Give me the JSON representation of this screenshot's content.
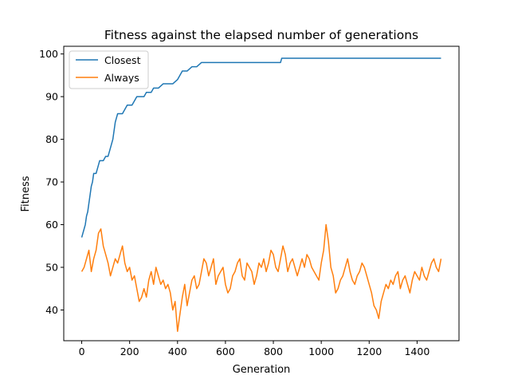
{
  "chart_data": {
    "type": "line",
    "title": "Fitness against the elapsed number of generations",
    "xlabel": "Generation",
    "ylabel": "Fitness",
    "xlim": [
      -75,
      1575
    ],
    "ylim": [
      32.8,
      101.8
    ],
    "xticks": [
      0,
      200,
      400,
      600,
      800,
      1000,
      1200,
      1400
    ],
    "yticks": [
      40,
      50,
      60,
      70,
      80,
      90,
      100
    ],
    "grid": false,
    "legend_position": "top-left",
    "series": [
      {
        "name": "Closest",
        "color": "#1f77b4",
        "x": [
          0,
          5,
          10,
          15,
          20,
          25,
          30,
          35,
          40,
          45,
          50,
          55,
          60,
          65,
          70,
          75,
          80,
          90,
          100,
          110,
          120,
          130,
          135,
          140,
          145,
          150,
          160,
          170,
          180,
          190,
          200,
          210,
          220,
          230,
          240,
          250,
          260,
          270,
          280,
          290,
          300,
          320,
          340,
          360,
          380,
          400,
          420,
          440,
          460,
          480,
          500,
          550,
          600,
          700,
          800,
          830,
          835,
          1000,
          1200,
          1400,
          1500
        ],
        "y": [
          57,
          58,
          59,
          60,
          62,
          63,
          65,
          67,
          69,
          70,
          72,
          72,
          72,
          73,
          74,
          75,
          75,
          75,
          76,
          76,
          78,
          80,
          82,
          84,
          85,
          86,
          86,
          86,
          87,
          88,
          88,
          88,
          89,
          90,
          90,
          90,
          90,
          91,
          91,
          91,
          92,
          92,
          93,
          93,
          93,
          94,
          96,
          96,
          97,
          97,
          98,
          98,
          98,
          98,
          98,
          98,
          99,
          99,
          99,
          99,
          99
        ]
      },
      {
        "name": "Always",
        "color": "#ff7f0e",
        "x": [
          0,
          10,
          20,
          30,
          40,
          50,
          60,
          70,
          80,
          90,
          100,
          110,
          120,
          130,
          140,
          150,
          160,
          170,
          180,
          190,
          200,
          210,
          220,
          230,
          240,
          250,
          260,
          270,
          280,
          290,
          300,
          310,
          320,
          330,
          340,
          350,
          360,
          370,
          380,
          390,
          400,
          410,
          420,
          430,
          440,
          450,
          460,
          470,
          480,
          490,
          500,
          510,
          520,
          530,
          540,
          550,
          560,
          570,
          580,
          590,
          600,
          610,
          620,
          630,
          640,
          650,
          660,
          670,
          680,
          690,
          700,
          710,
          720,
          730,
          740,
          750,
          760,
          770,
          780,
          790,
          800,
          810,
          820,
          830,
          840,
          850,
          860,
          870,
          880,
          890,
          900,
          910,
          920,
          930,
          940,
          950,
          960,
          970,
          980,
          990,
          1000,
          1010,
          1020,
          1030,
          1040,
          1050,
          1060,
          1070,
          1080,
          1090,
          1100,
          1110,
          1120,
          1130,
          1140,
          1150,
          1160,
          1170,
          1180,
          1190,
          1200,
          1210,
          1220,
          1230,
          1240,
          1250,
          1260,
          1270,
          1280,
          1290,
          1300,
          1310,
          1320,
          1330,
          1340,
          1350,
          1360,
          1370,
          1380,
          1390,
          1400,
          1410,
          1420,
          1430,
          1440,
          1450,
          1460,
          1470,
          1480,
          1490,
          1500
        ],
        "y": [
          49,
          50,
          52,
          54,
          49,
          52,
          54,
          58,
          59,
          55,
          53,
          51,
          48,
          50,
          52,
          51,
          53,
          55,
          51,
          49,
          50,
          47,
          48,
          45,
          42,
          43,
          45,
          43,
          47,
          49,
          46,
          50,
          48,
          46,
          47,
          45,
          46,
          44,
          40,
          42,
          35,
          39,
          43,
          46,
          41,
          44,
          47,
          48,
          45,
          46,
          49,
          52,
          51,
          48,
          50,
          52,
          46,
          48,
          49,
          50,
          46,
          44,
          45,
          48,
          49,
          51,
          52,
          48,
          47,
          51,
          50,
          49,
          46,
          48,
          51,
          50,
          52,
          49,
          51,
          54,
          53,
          50,
          49,
          52,
          55,
          53,
          49,
          51,
          52,
          50,
          48,
          50,
          52,
          50,
          53,
          52,
          50,
          49,
          48,
          47,
          51,
          54,
          60,
          56,
          50,
          48,
          44,
          45,
          47,
          48,
          50,
          52,
          49,
          47,
          46,
          48,
          49,
          51,
          50,
          48,
          46,
          44,
          41,
          40,
          38,
          42,
          44,
          46,
          45,
          47,
          46,
          48,
          49,
          45,
          47,
          48,
          46,
          44,
          47,
          49,
          48,
          47,
          50,
          48,
          47,
          49,
          51,
          52,
          50,
          49,
          52
        ]
      }
    ]
  }
}
